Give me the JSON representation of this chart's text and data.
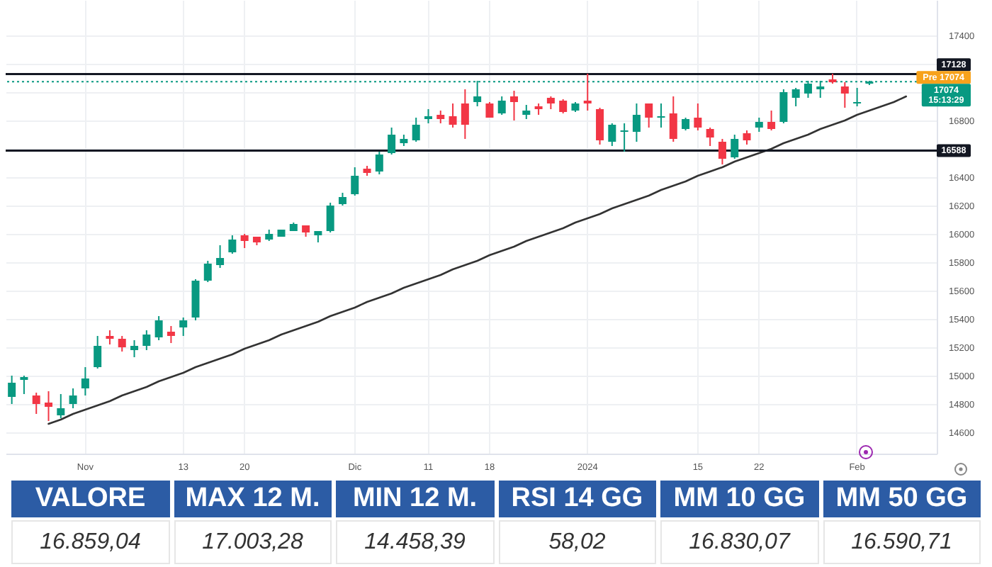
{
  "chart_data": {
    "type": "candlestick",
    "categories": [
      null,
      null,
      null,
      null,
      null,
      null,
      "Nov",
      null,
      null,
      null,
      null,
      null,
      null,
      null,
      "13",
      null,
      null,
      null,
      null,
      "20",
      null,
      null,
      null,
      null,
      null,
      null,
      null,
      null,
      "Dic",
      null,
      null,
      null,
      null,
      null,
      "11",
      null,
      null,
      null,
      null,
      "18",
      null,
      null,
      null,
      null,
      null,
      null,
      null,
      "2024",
      null,
      null,
      null,
      null,
      null,
      null,
      null,
      null,
      "15",
      null,
      null,
      null,
      null,
      "22",
      null,
      null,
      null,
      null,
      null,
      null,
      null,
      "Feb",
      null,
      null,
      null,
      null,
      null,
      null
    ],
    "ohlc": [
      [
        14850,
        15000,
        14800,
        14950
      ],
      [
        14970,
        15000,
        14870,
        14990
      ],
      [
        14860,
        14880,
        14730,
        14800
      ],
      [
        14810,
        14890,
        14680,
        14780
      ],
      [
        14720,
        14870,
        14700,
        14770
      ],
      [
        14800,
        14910,
        14770,
        14860
      ],
      [
        14910,
        15060,
        14860,
        14980
      ],
      [
        15060,
        15280,
        15050,
        15210
      ],
      [
        15280,
        15320,
        15220,
        15260
      ],
      [
        15260,
        15280,
        15170,
        15200
      ],
      [
        15180,
        15250,
        15130,
        15210
      ],
      [
        15210,
        15320,
        15180,
        15290
      ],
      [
        15270,
        15420,
        15250,
        15390
      ],
      [
        15310,
        15350,
        15230,
        15280
      ],
      [
        15340,
        15410,
        15280,
        15390
      ],
      [
        15410,
        15680,
        15390,
        15670
      ],
      [
        15670,
        15810,
        15660,
        15790
      ],
      [
        15780,
        15920,
        15760,
        15830
      ],
      [
        15870,
        15990,
        15860,
        15960
      ],
      [
        15990,
        16000,
        15900,
        15950
      ],
      [
        15980,
        15980,
        15920,
        15940
      ],
      [
        15960,
        16030,
        15950,
        16000
      ],
      [
        15980,
        16030,
        15980,
        16030
      ],
      [
        16020,
        16080,
        16020,
        16070
      ],
      [
        16060,
        16060,
        15980,
        16010
      ],
      [
        15990,
        16020,
        15940,
        16020
      ],
      [
        16020,
        16220,
        16010,
        16200
      ],
      [
        16210,
        16290,
        16200,
        16260
      ],
      [
        16280,
        16470,
        16270,
        16410
      ],
      [
        16460,
        16480,
        16410,
        16430
      ],
      [
        16440,
        16580,
        16420,
        16560
      ],
      [
        16570,
        16750,
        16560,
        16700
      ],
      [
        16640,
        16700,
        16620,
        16670
      ],
      [
        16660,
        16820,
        16650,
        16770
      ],
      [
        16810,
        16880,
        16780,
        16830
      ],
      [
        16840,
        16870,
        16780,
        16810
      ],
      [
        16830,
        16920,
        16750,
        16770
      ],
      [
        16920,
        17020,
        16670,
        16770
      ],
      [
        16930,
        17080,
        16900,
        16970
      ],
      [
        16920,
        16930,
        16820,
        16820
      ],
      [
        16850,
        16970,
        16840,
        16940
      ],
      [
        16970,
        17010,
        16800,
        16930
      ],
      [
        16840,
        16910,
        16810,
        16870
      ],
      [
        16900,
        16920,
        16840,
        16880
      ],
      [
        16960,
        16970,
        16880,
        16920
      ],
      [
        16940,
        16950,
        16850,
        16860
      ],
      [
        16870,
        16930,
        16860,
        16920
      ],
      [
        16940,
        17130,
        16870,
        16920
      ],
      [
        16880,
        16890,
        16630,
        16660
      ],
      [
        16650,
        16780,
        16620,
        16770
      ],
      [
        16720,
        16780,
        16580,
        16730
      ],
      [
        16720,
        16920,
        16650,
        16840
      ],
      [
        16920,
        16920,
        16750,
        16820
      ],
      [
        16820,
        16920,
        16750,
        16830
      ],
      [
        16850,
        16970,
        16650,
        16670
      ],
      [
        16740,
        16820,
        16730,
        16810
      ],
      [
        16820,
        16920,
        16730,
        16750
      ],
      [
        16740,
        16750,
        16620,
        16680
      ],
      [
        16650,
        16670,
        16490,
        16530
      ],
      [
        16540,
        16700,
        16530,
        16670
      ],
      [
        16710,
        16730,
        16630,
        16660
      ],
      [
        16750,
        16820,
        16720,
        16790
      ],
      [
        16790,
        16870,
        16730,
        16740
      ],
      [
        16790,
        17020,
        16780,
        17000
      ],
      [
        16960,
        17030,
        16900,
        17020
      ],
      [
        16990,
        17080,
        16960,
        17060
      ],
      [
        17020,
        17080,
        16960,
        17040
      ],
      [
        17090,
        17130,
        17060,
        17070
      ],
      [
        17040,
        17070,
        16890,
        16990
      ],
      [
        16920,
        17030,
        16900,
        16930
      ],
      [
        17060,
        17080,
        17050,
        17074
      ],
      null,
      null,
      null,
      null,
      null
    ],
    "colors": [
      "#089981",
      "#089981",
      "#f23645",
      "#f23645",
      "#089981",
      "#089981",
      "#089981",
      "#089981",
      "#f23645",
      "#f23645",
      "#089981",
      "#089981",
      "#089981",
      "#f23645",
      "#089981",
      "#089981",
      "#089981",
      "#089981",
      "#089981",
      "#f23645",
      "#f23645",
      "#089981",
      "#089981",
      "#089981",
      "#f23645",
      "#089981",
      "#089981",
      "#089981",
      "#089981",
      "#f23645",
      "#089981",
      "#089981",
      "#089981",
      "#089981",
      "#089981",
      "#f23645",
      "#f23645",
      "#f23645",
      "#089981",
      "#f23645",
      "#089981",
      "#f23645",
      "#089981",
      "#f23645",
      "#f23645",
      "#f23645",
      "#089981",
      "#f23645",
      "#f23645",
      "#089981",
      "#089981",
      "#089981",
      "#f23645",
      "#089981",
      "#f23645",
      "#089981",
      "#f23645",
      "#f23645",
      "#f23645",
      "#089981",
      "#f23645",
      "#089981",
      "#f23645",
      "#089981",
      "#089981",
      "#089981",
      "#089981",
      "#f23645",
      "#f23645",
      "#089981",
      "#089981",
      null,
      null,
      null,
      null,
      null
    ],
    "series": [
      {
        "type": "line",
        "color": "#333333",
        "values": [
          null,
          null,
          null,
          14660,
          14690,
          14730,
          14760,
          14790,
          14820,
          14860,
          14890,
          14920,
          14960,
          14990,
          15020,
          15060,
          15090,
          15120,
          15150,
          15190,
          15220,
          15250,
          15290,
          15320,
          15350,
          15380,
          15420,
          15450,
          15480,
          15520,
          15550,
          15580,
          15620,
          15650,
          15680,
          15710,
          15750,
          15780,
          15810,
          15850,
          15880,
          15910,
          15950,
          15980,
          16010,
          16040,
          16080,
          16110,
          16140,
          16180,
          16210,
          16240,
          16270,
          16310,
          16340,
          16370,
          16410,
          16440,
          16470,
          16510,
          16540,
          16570,
          16600,
          16640,
          16670,
          16700,
          16740,
          16770,
          16800,
          16840,
          16870,
          16900,
          16930,
          16970,
          null,
          null
        ]
      }
    ],
    "ylim": [
      14450,
      17650
    ],
    "yticks": [
      14600,
      14800,
      15000,
      15200,
      15400,
      15600,
      15800,
      16000,
      16200,
      16400,
      {
        "value": 16600,
        "label": null
      },
      16800,
      {
        "value": 17000,
        "label": null
      },
      {
        "value": 17200,
        "label": null
      },
      17400
    ],
    "grid": true,
    "ref_lines": [
      {
        "axis": "y",
        "value": 17128,
        "label": "17128",
        "color": "#131722"
      },
      {
        "axis": "y",
        "value": 16588,
        "label": "16588",
        "color": "#131722"
      },
      {
        "axis": "y",
        "value": 17074,
        "label": "17074\n15:13:29",
        "color": "#089981",
        "line_style": "dotted"
      }
    ],
    "annotations": [
      {
        "text": "Pre 17074",
        "y": 17074
      },
      "VALORE",
      "MAX 12 M.",
      "MIN 12 M.",
      "RSI 14 GG",
      "MM 10 GG",
      "MM 50 GG",
      "16.859,04",
      "17.003,28",
      "14.458,39",
      "58,02",
      "16.830,07",
      "16.590,71"
    ]
  }
}
